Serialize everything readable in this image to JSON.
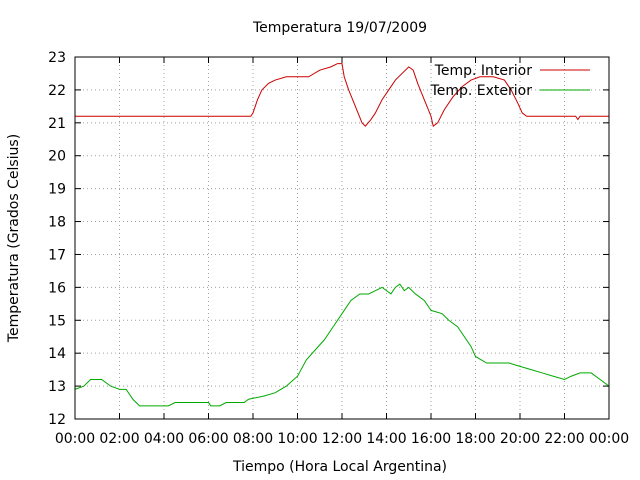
{
  "chart_data": {
    "type": "line",
    "title": "Temperatura 19/07/2009",
    "xlabel": "Tiempo (Hora Local Argentina)",
    "ylabel": "Temperatura (Grados Celsius)",
    "x_ticks": [
      "00:00",
      "02:00",
      "04:00",
      "06:00",
      "08:00",
      "10:00",
      "12:00",
      "14:00",
      "16:00",
      "18:00",
      "20:00",
      "22:00",
      "00:00"
    ],
    "y_ticks": [
      "12",
      "13",
      "14",
      "15",
      "16",
      "17",
      "18",
      "19",
      "20",
      "21",
      "22",
      "23"
    ],
    "xlim_hours": [
      0,
      24
    ],
    "ylim": [
      12,
      23
    ],
    "grid": true,
    "legend_position": "top-right",
    "series": [
      {
        "name": "Temp. Interior",
        "color": "#cc0000",
        "points": [
          [
            0.0,
            21.2
          ],
          [
            2.0,
            21.2
          ],
          [
            4.0,
            21.2
          ],
          [
            6.0,
            21.2
          ],
          [
            7.9,
            21.2
          ],
          [
            8.0,
            21.3
          ],
          [
            8.2,
            21.7
          ],
          [
            8.4,
            22.0
          ],
          [
            8.7,
            22.2
          ],
          [
            9.0,
            22.3
          ],
          [
            9.5,
            22.4
          ],
          [
            10.0,
            22.4
          ],
          [
            10.5,
            22.4
          ],
          [
            11.0,
            22.6
          ],
          [
            11.5,
            22.7
          ],
          [
            11.8,
            22.8
          ],
          [
            12.0,
            22.8
          ],
          [
            12.1,
            22.4
          ],
          [
            12.3,
            22.0
          ],
          [
            12.6,
            21.5
          ],
          [
            12.9,
            21.0
          ],
          [
            13.05,
            20.9
          ],
          [
            13.3,
            21.1
          ],
          [
            13.5,
            21.3
          ],
          [
            13.8,
            21.7
          ],
          [
            14.1,
            22.0
          ],
          [
            14.4,
            22.3
          ],
          [
            14.7,
            22.5
          ],
          [
            15.0,
            22.7
          ],
          [
            15.2,
            22.6
          ],
          [
            15.4,
            22.2
          ],
          [
            15.7,
            21.7
          ],
          [
            16.0,
            21.2
          ],
          [
            16.1,
            20.9
          ],
          [
            16.3,
            21.0
          ],
          [
            16.6,
            21.4
          ],
          [
            17.0,
            21.8
          ],
          [
            17.4,
            22.1
          ],
          [
            17.8,
            22.3
          ],
          [
            18.2,
            22.4
          ],
          [
            18.8,
            22.4
          ],
          [
            19.3,
            22.3
          ],
          [
            19.6,
            22.0
          ],
          [
            19.9,
            21.6
          ],
          [
            20.1,
            21.3
          ],
          [
            20.3,
            21.2
          ],
          [
            21.0,
            21.2
          ],
          [
            22.0,
            21.2
          ],
          [
            22.5,
            21.2
          ],
          [
            22.6,
            21.1
          ],
          [
            22.7,
            21.2
          ],
          [
            23.0,
            21.2
          ],
          [
            24.0,
            21.2
          ]
        ]
      },
      {
        "name": "Temp. Exterior",
        "color": "#00aa00",
        "points": [
          [
            0.0,
            12.9
          ],
          [
            0.4,
            13.0
          ],
          [
            0.7,
            13.2
          ],
          [
            1.2,
            13.2
          ],
          [
            1.6,
            13.0
          ],
          [
            2.0,
            12.9
          ],
          [
            2.3,
            12.9
          ],
          [
            2.6,
            12.6
          ],
          [
            2.9,
            12.4
          ],
          [
            3.5,
            12.4
          ],
          [
            4.2,
            12.4
          ],
          [
            4.5,
            12.5
          ],
          [
            5.0,
            12.5
          ],
          [
            5.5,
            12.5
          ],
          [
            6.0,
            12.5
          ],
          [
            6.1,
            12.4
          ],
          [
            6.5,
            12.4
          ],
          [
            6.8,
            12.5
          ],
          [
            7.2,
            12.5
          ],
          [
            7.6,
            12.5
          ],
          [
            7.8,
            12.6
          ],
          [
            8.5,
            12.7
          ],
          [
            9.0,
            12.8
          ],
          [
            9.5,
            13.0
          ],
          [
            10.0,
            13.3
          ],
          [
            10.4,
            13.8
          ],
          [
            10.8,
            14.1
          ],
          [
            11.2,
            14.4
          ],
          [
            11.6,
            14.8
          ],
          [
            12.0,
            15.2
          ],
          [
            12.4,
            15.6
          ],
          [
            12.8,
            15.8
          ],
          [
            13.2,
            15.8
          ],
          [
            13.5,
            15.9
          ],
          [
            13.8,
            16.0
          ],
          [
            14.0,
            15.9
          ],
          [
            14.2,
            15.8
          ],
          [
            14.4,
            16.0
          ],
          [
            14.6,
            16.1
          ],
          [
            14.8,
            15.9
          ],
          [
            15.0,
            16.0
          ],
          [
            15.3,
            15.8
          ],
          [
            15.7,
            15.6
          ],
          [
            16.0,
            15.3
          ],
          [
            16.5,
            15.2
          ],
          [
            16.8,
            15.0
          ],
          [
            17.2,
            14.8
          ],
          [
            17.5,
            14.5
          ],
          [
            17.8,
            14.2
          ],
          [
            18.0,
            13.9
          ],
          [
            18.5,
            13.7
          ],
          [
            19.0,
            13.7
          ],
          [
            19.5,
            13.7
          ],
          [
            20.0,
            13.6
          ],
          [
            20.5,
            13.5
          ],
          [
            21.0,
            13.4
          ],
          [
            21.5,
            13.3
          ],
          [
            22.0,
            13.2
          ],
          [
            22.3,
            13.3
          ],
          [
            22.7,
            13.4
          ],
          [
            23.2,
            13.4
          ],
          [
            23.6,
            13.2
          ],
          [
            24.0,
            13.0
          ]
        ]
      }
    ]
  }
}
